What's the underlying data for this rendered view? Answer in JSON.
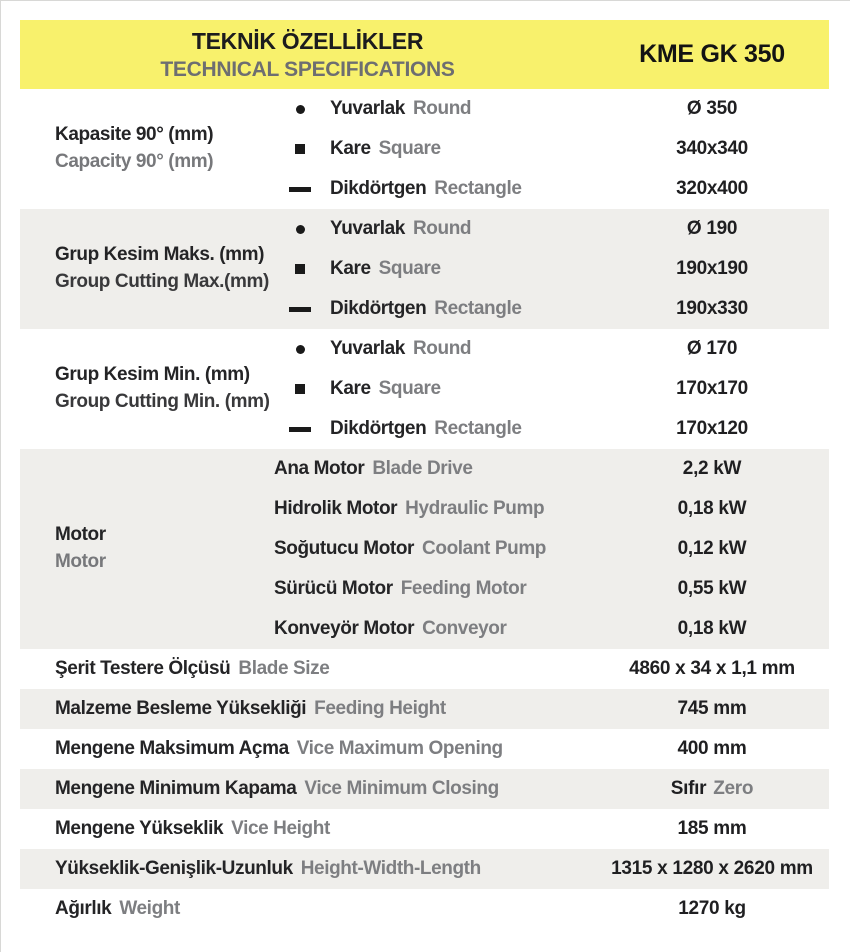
{
  "header": {
    "title_tr": "TEKNİK ÖZELLİKLER",
    "title_en": "TECHNICAL SPECIFICATIONS",
    "model": "KME GK 350"
  },
  "colors": {
    "accent_yellow": "#F8F16C",
    "band_gray": "#EFEEEB",
    "text_black": "#231F20",
    "text_gray": "#77787B"
  },
  "sections": [
    {
      "label_tr": "Kapasite 90° (mm)",
      "label_en": "Capacity 90° (mm)",
      "label_en_shade": "gray",
      "band": "white",
      "rows": [
        {
          "bullet": "circle",
          "tr": "Yuvarlak",
          "en": "Round",
          "value": "Ø 350"
        },
        {
          "bullet": "square",
          "tr": "Kare",
          "en": "Square",
          "value": "340x340"
        },
        {
          "bullet": "dash",
          "tr": "Dikdörtgen",
          "en": "Rectangle",
          "value": "320x400"
        }
      ]
    },
    {
      "label_tr": "Grup Kesim Maks. (mm)",
      "label_en": "Group Cutting Max.(mm)",
      "label_en_shade": "dark",
      "band": "gray",
      "rows": [
        {
          "bullet": "circle",
          "tr": "Yuvarlak",
          "en": "Round",
          "value": "Ø 190"
        },
        {
          "bullet": "square",
          "tr": "Kare",
          "en": "Square",
          "value": "190x190"
        },
        {
          "bullet": "dash",
          "tr": "Dikdörtgen",
          "en": "Rectangle",
          "value": "190x330"
        }
      ]
    },
    {
      "label_tr": "Grup Kesim Min. (mm)",
      "label_en": "Group Cutting Min. (mm)",
      "label_en_shade": "dark",
      "band": "white",
      "rows": [
        {
          "bullet": "circle",
          "tr": "Yuvarlak",
          "en": "Round",
          "value": "Ø 170"
        },
        {
          "bullet": "square",
          "tr": "Kare",
          "en": "Square",
          "value": "170x170"
        },
        {
          "bullet": "dash",
          "tr": "Dikdörtgen",
          "en": "Rectangle",
          "value": "170x120"
        }
      ]
    },
    {
      "label_tr": "Motor",
      "label_en": "Motor",
      "label_en_shade": "gray",
      "band": "gray",
      "rows": [
        {
          "tr": "Ana Motor",
          "en": "Blade Drive",
          "value": "2,2 kW"
        },
        {
          "tr": "Hidrolik Motor",
          "en": "Hydraulic Pump",
          "value": "0,18 kW"
        },
        {
          "tr": "Soğutucu Motor",
          "en": "Coolant Pump",
          "value": "0,12 kW"
        },
        {
          "tr": "Sürücü Motor",
          "en": "Feeding Motor",
          "value": "0,55 kW"
        },
        {
          "tr": "Konveyör Motor",
          "en": "Conveyor",
          "value": "0,18 kW"
        }
      ]
    }
  ],
  "simple_rows": [
    {
      "tr": "Şerit Testere Ölçüsü",
      "en": "Blade Size",
      "value": "4860 x 34 x 1,1 mm",
      "band": "white"
    },
    {
      "tr": "Malzeme Besleme Yüksekliği",
      "en": "Feeding Height",
      "value": "745 mm",
      "band": "gray"
    },
    {
      "tr": "Mengene Maksimum Açma",
      "en": "Vice Maximum Opening",
      "value": "400 mm",
      "band": "white"
    },
    {
      "tr": "Mengene Minimum Kapama",
      "en": "Vice Minimum Closing",
      "value": "Sıfır",
      "value_en": "Zero",
      "band": "gray"
    },
    {
      "tr": "Mengene Yükseklik",
      "en": "Vice Height",
      "value": "185 mm",
      "band": "white"
    },
    {
      "tr": "Yükseklik-Genişlik-Uzunluk",
      "en": "Height-Width-Length",
      "value": "1315 x 1280 x 2620 mm",
      "band": "gray"
    },
    {
      "tr": "Ağırlık",
      "en": "Weight",
      "value": "1270 kg",
      "band": "white"
    }
  ]
}
